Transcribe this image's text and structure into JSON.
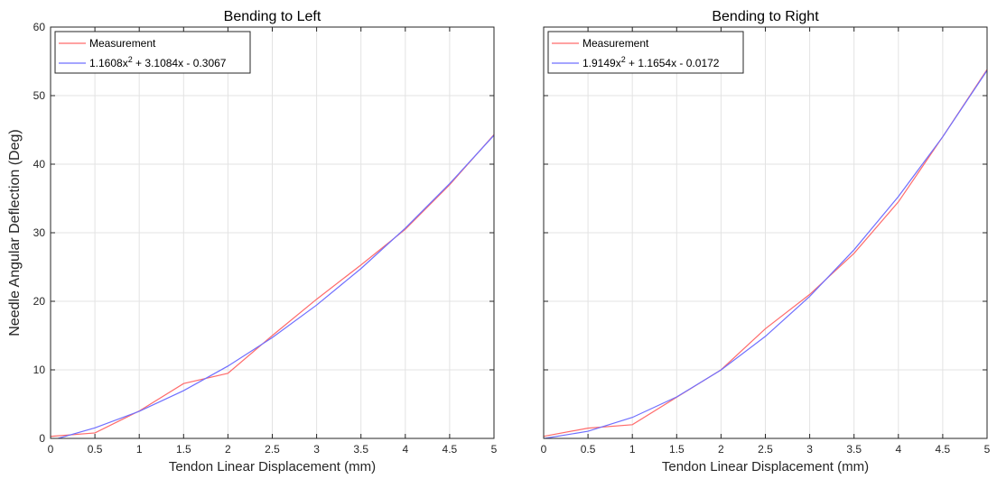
{
  "figure": {
    "ylabel": "Needle Angular Deflection (Deg)"
  },
  "chart_data": [
    {
      "type": "line",
      "title": "Bending to Left",
      "xlabel": "Tendon Linear Displacement (mm)",
      "ylabel": "Needle Angular Deflection (Deg)",
      "xlim": [
        0,
        5
      ],
      "ylim": [
        0,
        60
      ],
      "xticks": [
        "0",
        "0.5",
        "1",
        "1.5",
        "2",
        "2.5",
        "3",
        "3.5",
        "4",
        "4.5",
        "5"
      ],
      "yticks": [
        "0",
        "10",
        "20",
        "30",
        "40",
        "50",
        "60"
      ],
      "grid": true,
      "legend": "top-left",
      "series": [
        {
          "name": "Measurement",
          "color": "#ff6b6b",
          "x": [
            0,
            0.5,
            1,
            1.5,
            2,
            2.5,
            3,
            3.5,
            4,
            4.5,
            5
          ],
          "y": [
            0.3,
            0.8,
            4,
            8,
            9.5,
            15,
            20.3,
            25.3,
            30.5,
            37,
            44.3
          ]
        },
        {
          "name": "1.1608x",
          "name_sup": "2",
          "name_rest": " + 3.1084x - 0.3067",
          "color": "#6f6fff",
          "x": [
            0,
            0.5,
            1,
            1.5,
            2,
            2.5,
            3,
            3.5,
            4,
            4.5,
            5
          ],
          "y": [
            -0.31,
            1.54,
            3.96,
            6.97,
            10.55,
            14.7,
            19.45,
            24.77,
            30.67,
            37.16,
            44.22
          ]
        }
      ]
    },
    {
      "type": "line",
      "title": "Bending to Right",
      "xlabel": "Tendon Linear Displacement (mm)",
      "ylabel": "",
      "xlim": [
        0,
        5
      ],
      "ylim": [
        0,
        60
      ],
      "xticks": [
        "0",
        "0.5",
        "1",
        "1.5",
        "2",
        "2.5",
        "3",
        "3.5",
        "4",
        "4.5",
        "5"
      ],
      "yticks": [
        "0",
        "10",
        "20",
        "30",
        "40",
        "50",
        "60"
      ],
      "grid": true,
      "legend": "top-left",
      "series": [
        {
          "name": "Measurement",
          "color": "#ff6b6b",
          "x": [
            0,
            0.5,
            1,
            1.5,
            2,
            2.5,
            3,
            3.5,
            4,
            4.5,
            5
          ],
          "y": [
            0.3,
            1.5,
            2,
            6,
            10,
            16,
            21,
            27,
            34.5,
            44,
            53.8
          ]
        },
        {
          "name": "1.9149x",
          "name_sup": "2",
          "name_rest": " + 1.1654x - 0.0172",
          "color": "#6f6fff",
          "x": [
            0,
            0.5,
            1,
            1.5,
            2,
            2.5,
            3,
            3.5,
            4,
            4.5,
            5
          ],
          "y": [
            -0.02,
            1.04,
            3.06,
            6.05,
            9.99,
            14.88,
            20.71,
            27.51,
            35.28,
            43.99,
            53.67
          ]
        }
      ]
    }
  ]
}
